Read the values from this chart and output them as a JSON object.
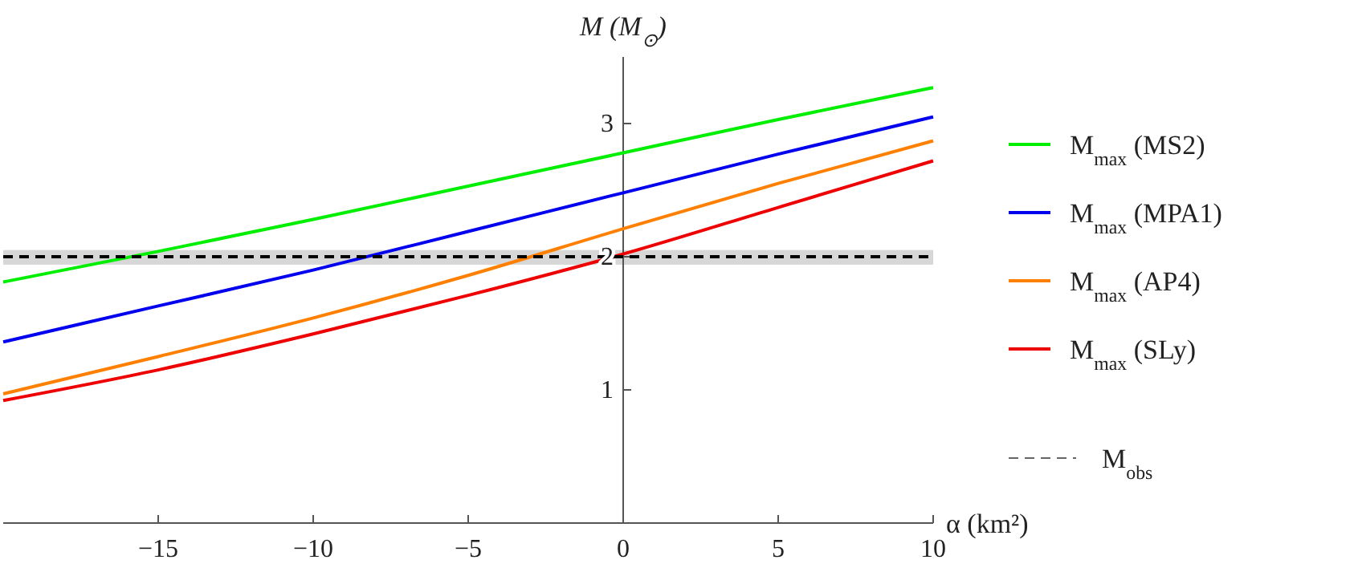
{
  "chart_data": {
    "type": "line",
    "xlabel": "α (km²)",
    "ylabel": "M (M$_{⊙}$)",
    "x": [
      -20,
      -15,
      -10,
      -5,
      0,
      5,
      10
    ],
    "xlim": [
      -20,
      10
    ],
    "xticks": [
      -15,
      -10,
      -5,
      0,
      5,
      10
    ],
    "ylim": [
      0,
      3.5
    ],
    "yticks": [
      1,
      2,
      3
    ],
    "series": [
      {
        "name": "M$_{max}$ (MS2)",
        "color": "#00ee00",
        "values": [
          1.81,
          2.04,
          2.28,
          2.53,
          2.78,
          3.03,
          3.27
        ]
      },
      {
        "name": "M$_{max}$ (MPA1)",
        "color": "#0000ee",
        "values": [
          1.36,
          1.63,
          1.9,
          2.19,
          2.48,
          2.77,
          3.05
        ]
      },
      {
        "name": "M$_{max}$ (AP4)",
        "color": "#ff8000",
        "values": [
          0.97,
          1.25,
          1.54,
          1.86,
          2.21,
          2.55,
          2.87
        ]
      },
      {
        "name": "M$_{max}$ (SLy)",
        "color": "#ee0000",
        "values": [
          0.92,
          1.15,
          1.42,
          1.71,
          2.02,
          2.37,
          2.72
        ]
      }
    ],
    "ref_lines": [
      {
        "axis": "y",
        "value": 2,
        "label": "M$_{obs}$",
        "color": "#000000",
        "line_style": "dashed"
      }
    ],
    "bands": [
      {
        "axis": "y",
        "from": 1.94,
        "to": 2.05,
        "color": "#d3d3d3"
      }
    ],
    "legend": "right",
    "grid": false,
    "marker": "none",
    "line_style": "solid"
  }
}
